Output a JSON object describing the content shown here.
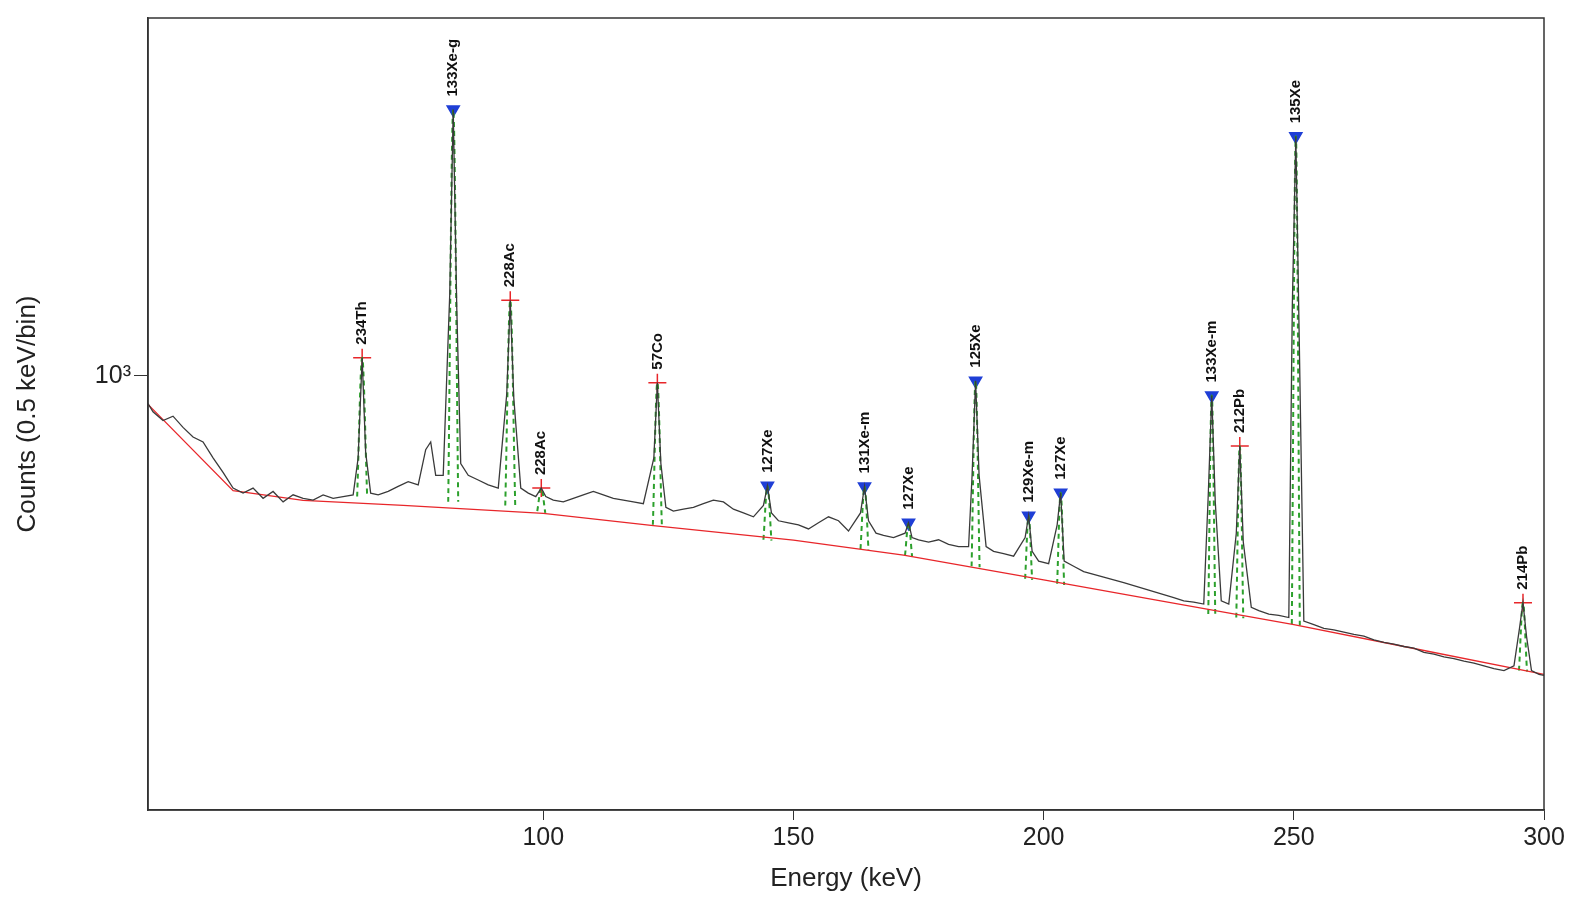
{
  "chart_data": {
    "type": "line",
    "xlabel": "Energy (keV)",
    "ylabel": "Counts (0.5 keV/bin)",
    "log": "y",
    "grid": false,
    "xlim": [
      21,
      300
    ],
    "xticks": [
      100,
      150,
      200,
      250,
      300
    ],
    "ylim": [
      80,
      8000
    ],
    "yticks": [
      {
        "value": 1000,
        "label": "10³"
      }
    ],
    "series": [
      {
        "color": "#3a3a3a",
        "line_style": "solid",
        "x": [
          21,
          22,
          24,
          26,
          28,
          30,
          32,
          34,
          36,
          38,
          40,
          42,
          44,
          46,
          48,
          50,
          52,
          54,
          56,
          58,
          60,
          62,
          63,
          63.8,
          64.5,
          65.5,
          67,
          69,
          71,
          73,
          75,
          76.5,
          77.5,
          78.5,
          80,
          81.3,
          82,
          82.7,
          83.5,
          85,
          87,
          89,
          91,
          92.7,
          93.4,
          94.1,
          95.5,
          97,
          98.5,
          99.6,
          100.5,
          102,
          104,
          106,
          108,
          110,
          112,
          114,
          116,
          118,
          120,
          122.1,
          122.8,
          123.5,
          124.5,
          126,
          128,
          130,
          132,
          134,
          136,
          138,
          140,
          142,
          144,
          144.8,
          145.6,
          147,
          149,
          151,
          153,
          155,
          157,
          159,
          161,
          163.4,
          164.2,
          165,
          166.5,
          168,
          170,
          172.3,
          173,
          173.7,
          175,
          177,
          179,
          181,
          183,
          185,
          185.7,
          186.4,
          187.1,
          188.5,
          190,
          192,
          194,
          196.3,
          197,
          197.7,
          199,
          201,
          202.7,
          203.4,
          204.1,
          206,
          208,
          210,
          212,
          214,
          216,
          218,
          220,
          222,
          224,
          226,
          228,
          230,
          232,
          232.9,
          233.6,
          234.3,
          235.5,
          237,
          238.5,
          239.2,
          239.9,
          241.5,
          243,
          245,
          247,
          249,
          249.7,
          250.4,
          251.1,
          252,
          254,
          256,
          258,
          260,
          262,
          264,
          266,
          268,
          270,
          272,
          274,
          276,
          278,
          280,
          282,
          284,
          286,
          288,
          290,
          292,
          294,
          295.1,
          295.8,
          296.5,
          297.5,
          299,
          300
        ],
        "values": [
          850,
          810,
          770,
          790,
          740,
          700,
          680,
          620,
          570,
          520,
          505,
          520,
          490,
          510,
          480,
          500,
          490,
          485,
          500,
          490,
          495,
          500,
          620,
          1110,
          640,
          505,
          500,
          510,
          525,
          540,
          530,
          650,
          680,
          560,
          560,
          1600,
          4700,
          1500,
          600,
          560,
          545,
          530,
          520,
          900,
          1550,
          880,
          520,
          505,
          495,
          520,
          495,
          485,
          480,
          490,
          500,
          510,
          500,
          490,
          485,
          480,
          475,
          620,
          960,
          600,
          465,
          455,
          460,
          465,
          475,
          485,
          480,
          460,
          450,
          440,
          470,
          527,
          450,
          430,
          425,
          420,
          410,
          425,
          440,
          430,
          405,
          450,
          525,
          430,
          400,
          395,
          390,
          400,
          425,
          390,
          385,
          380,
          385,
          375,
          370,
          370,
          560,
          971,
          560,
          370,
          360,
          355,
          350,
          390,
          443,
          360,
          340,
          335,
          420,
          506,
          340,
          330,
          320,
          315,
          310,
          305,
          300,
          295,
          290,
          285,
          280,
          275,
          270,
          268,
          265,
          500,
          891,
          480,
          270,
          265,
          400,
          664,
          380,
          260,
          255,
          250,
          248,
          245,
          1500,
          4020,
          1200,
          240,
          235,
          230,
          228,
          225,
          222,
          220,
          215,
          212,
          210,
          207,
          205,
          200,
          198,
          195,
          193,
          190,
          188,
          185,
          182,
          180,
          185,
          230,
          267,
          220,
          180,
          176,
          175
        ]
      },
      {
        "color": "#e8262a",
        "line_style": "solid",
        "x": [
          21,
          38,
          52,
          72,
          100,
          122,
          150,
          172,
          200,
          222,
          250,
          272,
          300
        ],
        "values": [
          846,
          512,
          484,
          470,
          449,
          418,
          384,
          352,
          305,
          272,
          235,
          207,
          176
        ]
      },
      {
        "color": "#2ca02c",
        "line_style": "dashed",
        "x": [
          62.8,
          63.8,
          64.8,
          65,
          81,
          82,
          83,
          83.2,
          92.4,
          93.4,
          94.4,
          94.6,
          98.8,
          99.6,
          100.4,
          100.6,
          121.9,
          122.8,
          123.7,
          124,
          144,
          144.8,
          145.6,
          146,
          163.4,
          164.2,
          165,
          165.3,
          172.3,
          173,
          173.7,
          174,
          185.6,
          186.4,
          187.2,
          187.5,
          196.3,
          197,
          197.7,
          198,
          202.7,
          203.4,
          204.1,
          204.5,
          232.9,
          233.6,
          234.3,
          235.5,
          238.5,
          239.2,
          239.9,
          240.5,
          249.6,
          250.4,
          251.2,
          252,
          295,
          295.8,
          296.6
        ],
        "values": [
          495,
          1110,
          495,
          null,
          480,
          4700,
          480,
          null,
          470,
          1550,
          465,
          null,
          455,
          520,
          450,
          null,
          420,
          960,
          418,
          null,
          385,
          527,
          383,
          null,
          365,
          525,
          363,
          null,
          352,
          425,
          350,
          null,
          330,
          971,
          328,
          null,
          307,
          443,
          305,
          null,
          298,
          506,
          296,
          null,
          250,
          891,
          249,
          null,
          245,
          664,
          244,
          null,
          236,
          4020,
          234,
          null,
          180,
          267,
          179
        ]
      }
    ],
    "annotations": [
      {
        "text": "234Th",
        "x": 63.8,
        "y": 1110,
        "marker": "cross",
        "color": "#e8262a"
      },
      {
        "text": "133Xe-g",
        "x": 82,
        "y": 4700,
        "marker": "triangle_down",
        "color": "#1f3fd6"
      },
      {
        "text": "228Ac",
        "x": 93.4,
        "y": 1550,
        "marker": "cross",
        "color": "#e8262a"
      },
      {
        "text": "228Ac",
        "x": 99.6,
        "y": 520,
        "marker": "cross",
        "color": "#e8262a"
      },
      {
        "text": "57Co",
        "x": 122.8,
        "y": 960,
        "marker": "cross",
        "color": "#e8262a"
      },
      {
        "text": "127Xe",
        "x": 144.8,
        "y": 527,
        "marker": "triangle_down",
        "color": "#1f3fd6"
      },
      {
        "text": "131Xe-m",
        "x": 164.2,
        "y": 525,
        "marker": "triangle_down",
        "color": "#1f3fd6"
      },
      {
        "text": "127Xe",
        "x": 173,
        "y": 425,
        "marker": "triangle_down",
        "color": "#1f3fd6"
      },
      {
        "text": "125Xe",
        "x": 186.4,
        "y": 971,
        "marker": "triangle_down",
        "color": "#1f3fd6"
      },
      {
        "text": "129Xe-m",
        "x": 197,
        "y": 443,
        "marker": "triangle_down",
        "color": "#1f3fd6"
      },
      {
        "text": "127Xe",
        "x": 203.4,
        "y": 506,
        "marker": "triangle_down",
        "color": "#1f3fd6"
      },
      {
        "text": "133Xe-m",
        "x": 233.6,
        "y": 891,
        "marker": "triangle_down",
        "color": "#1f3fd6"
      },
      {
        "text": "212Pb",
        "x": 239.2,
        "y": 664,
        "marker": "cross",
        "color": "#e8262a"
      },
      {
        "text": "135Xe",
        "x": 250.4,
        "y": 4020,
        "marker": "triangle_down",
        "color": "#1f3fd6"
      },
      {
        "text": "214Pb",
        "x": 295.8,
        "y": 267,
        "marker": "cross",
        "color": "#e8262a"
      }
    ]
  }
}
